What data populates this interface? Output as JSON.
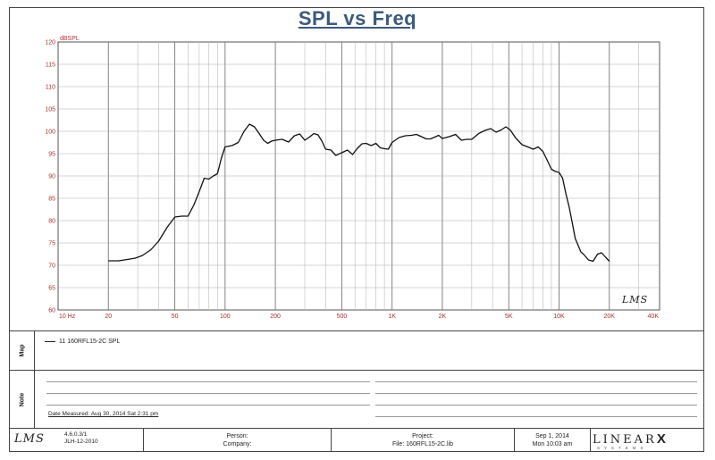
{
  "chart_data": {
    "type": "line",
    "title": "SPL vs Freq",
    "ylabel": "dBSPL",
    "xscale": "log",
    "xlim": [
      10,
      40000
    ],
    "ylim": [
      60,
      120
    ],
    "y_ticks": [
      "60",
      "65",
      "70",
      "75",
      "80",
      "85",
      "90",
      "95",
      "100",
      "105",
      "110",
      "115",
      "120"
    ],
    "x_ticks": [
      {
        "value": 10,
        "label": "10 Hz"
      },
      {
        "value": 20,
        "label": "20"
      },
      {
        "value": 50,
        "label": "50"
      },
      {
        "value": 100,
        "label": "100"
      },
      {
        "value": 200,
        "label": "200"
      },
      {
        "value": 500,
        "label": "500"
      },
      {
        "value": 1000,
        "label": "1K"
      },
      {
        "value": 2000,
        "label": "2K"
      },
      {
        "value": 5000,
        "label": "5K"
      },
      {
        "value": 10000,
        "label": "10K"
      },
      {
        "value": 20000,
        "label": "20K"
      },
      {
        "value": 40000,
        "label": "40K"
      }
    ],
    "grid": true,
    "series": [
      {
        "name": "11 160RFL15-2C SPL",
        "x": [
          20,
          23,
          26,
          29,
          32,
          36,
          40,
          45,
          50,
          55,
          60,
          65,
          70,
          75,
          80,
          85,
          90,
          95,
          100,
          110,
          120,
          130,
          140,
          150,
          160,
          170,
          180,
          190,
          200,
          220,
          240,
          260,
          280,
          300,
          320,
          340,
          360,
          380,
          400,
          430,
          460,
          500,
          540,
          580,
          620,
          660,
          700,
          750,
          800,
          850,
          900,
          950,
          1000,
          1100,
          1200,
          1300,
          1400,
          1500,
          1600,
          1700,
          1800,
          1900,
          2000,
          2200,
          2400,
          2600,
          2800,
          3000,
          3300,
          3600,
          3900,
          4200,
          4500,
          4800,
          5100,
          5500,
          6000,
          6500,
          7000,
          7500,
          8000,
          8500,
          9000,
          9500,
          10000,
          10500,
          11000,
          11500,
          12000,
          12500,
          13000,
          13500,
          14000,
          15000,
          16000,
          17000,
          18000,
          19000,
          20000
        ],
        "y": [
          71,
          71,
          71.3,
          71.6,
          72.2,
          73.5,
          75.4,
          78.5,
          80.8,
          81,
          81,
          83.5,
          86.5,
          89.5,
          89.3,
          90,
          90.5,
          94,
          96.5,
          96.8,
          97.5,
          100,
          101.6,
          101,
          99.5,
          98,
          97.3,
          97.8,
          98,
          98.2,
          97.6,
          99,
          99.4,
          98,
          98.7,
          99.5,
          99.2,
          97.8,
          96,
          95.8,
          94.6,
          95.2,
          95.8,
          94.8,
          96.2,
          97.2,
          97.3,
          96.8,
          97.3,
          96.3,
          96.1,
          96,
          97.5,
          98.6,
          99,
          99.1,
          99.3,
          98.8,
          98.3,
          98.3,
          98.7,
          99.1,
          98.4,
          98.8,
          99.3,
          98,
          98.2,
          98.2,
          99.5,
          100.2,
          100.6,
          99.8,
          100.3,
          101,
          100.3,
          98.5,
          97,
          96.5,
          96,
          96.5,
          95.5,
          93.5,
          91.5,
          91,
          90.8,
          89.5,
          86,
          83,
          79.5,
          76,
          74.5,
          73,
          72.5,
          71.2,
          70.9,
          72.5,
          72.8,
          71.8,
          70.9
        ]
      }
    ]
  },
  "panels": {
    "map_label": "Map",
    "note_label": "Note",
    "legend_text": "11  160RFL15-2C  SPL",
    "date_measured": "Date Measured: Aug 30, 2014   Sat   2:31 pm"
  },
  "footer": {
    "logo": "LMS",
    "version": "4.6.0.3/1",
    "version2": "JLH-12-2010",
    "person_label": "Person:",
    "company_label": "Company:",
    "project_label": "Project:",
    "file_label": "File: 160RFL15-2C.lib",
    "date": "Sep 1, 2014",
    "time": "Mon 10:03 am",
    "brand": "LINEAR",
    "brand_x": "X",
    "brand_sub": "SYSTEMS"
  },
  "watermark": "LMS"
}
